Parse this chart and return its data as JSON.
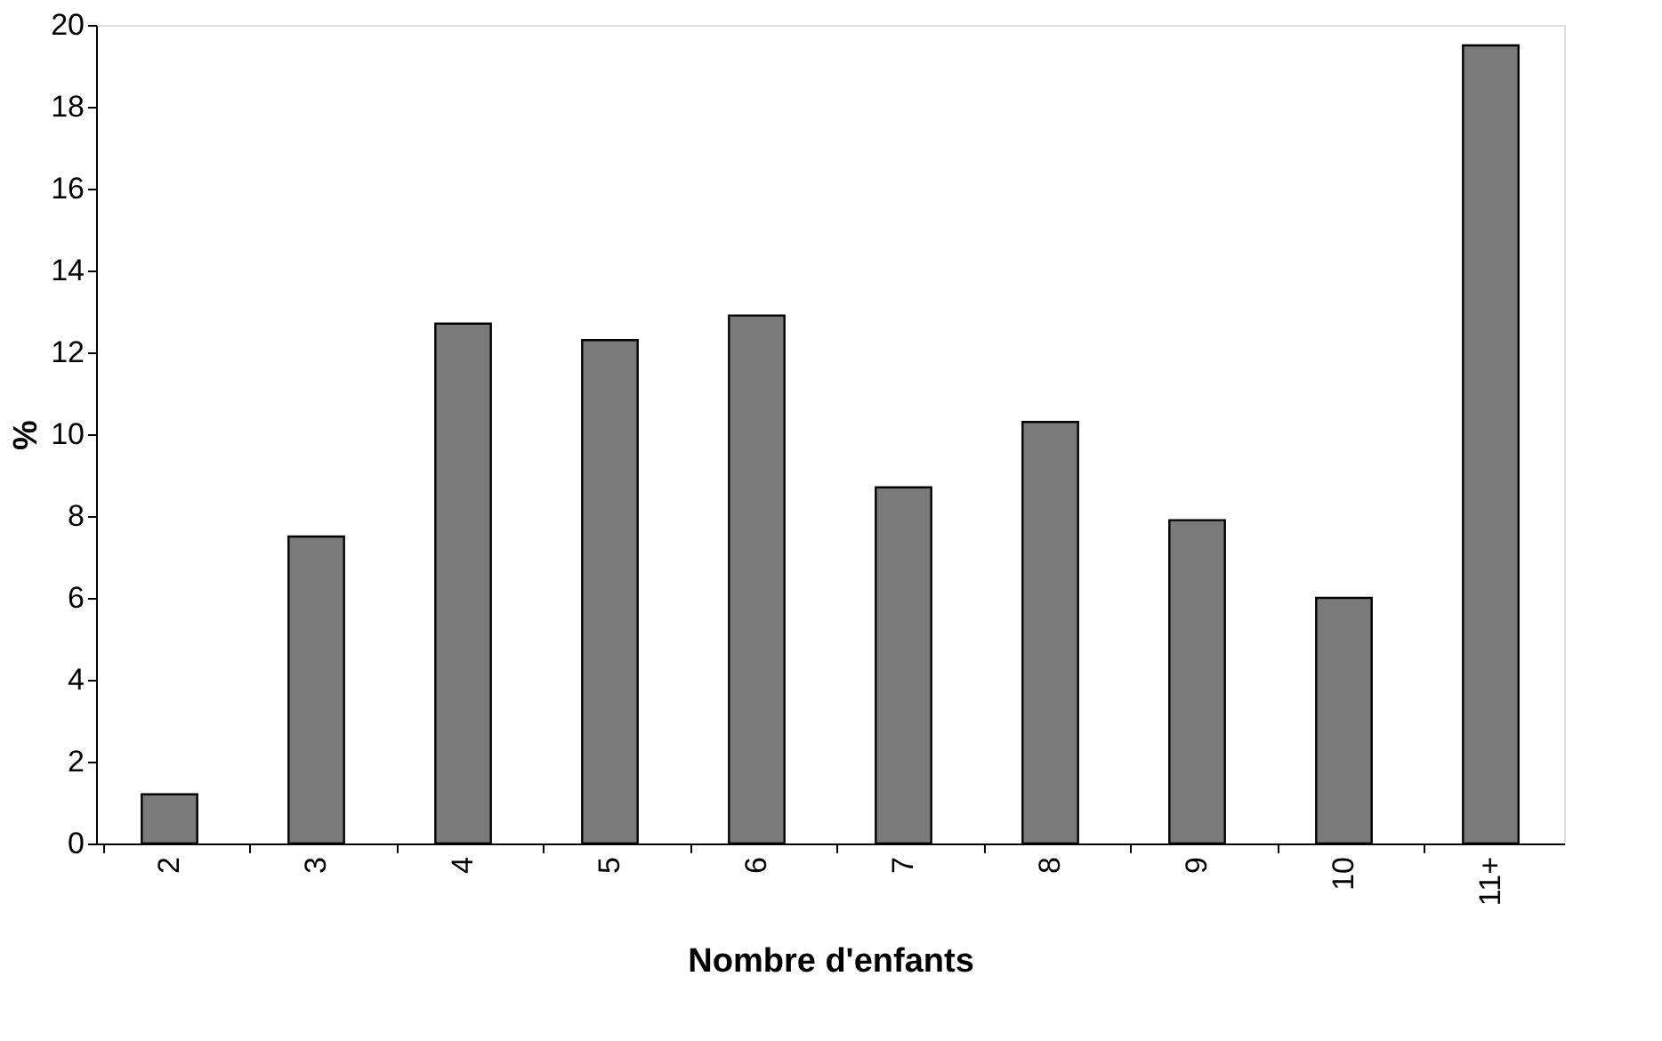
{
  "chart_data": {
    "type": "bar",
    "xlabel": "Nombre d'enfants",
    "ylabel": "%",
    "categories": [
      "2",
      "3",
      "4",
      "5",
      "6",
      "7",
      "8",
      "9",
      "10",
      "11+"
    ],
    "values": [
      1.2,
      7.5,
      12.7,
      12.3,
      12.9,
      8.7,
      10.3,
      7.9,
      6.0,
      19.5
    ],
    "color": "#7a7a7a",
    "ylim": [
      0,
      20
    ],
    "yticks": [
      0,
      2,
      4,
      6,
      8,
      10,
      12,
      14,
      16,
      18,
      20
    ],
    "grid": false
  }
}
